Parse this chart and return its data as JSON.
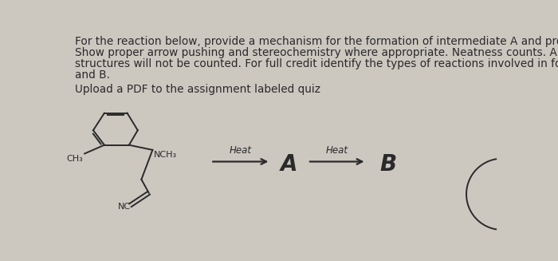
{
  "background_color": "#ccc8c0",
  "title_lines": [
    "For the reaction below, provide a mechanism for the formation of intermediate A and product B.",
    "Show proper arrow pushing and stereochemistry where appropriate. Neatness counts. Any illegible",
    "structures will not be counted. For full credit identify the types of reactions involved in forming A",
    "and B."
  ],
  "upload_line": "Upload a PDF to the assignment labeled quiz",
  "heat_label1": "Heat",
  "heat_label2": "Heat",
  "A_label": "A",
  "B_label": "B",
  "CH3_label": "CH₃",
  "NCH3_label": "NCH₃",
  "NC_label": "NC",
  "text_color": "#2a2a2a",
  "arrow_color": "#2a2a2a",
  "line_color": "#2a2a2a",
  "title_fontsize": 9.8,
  "upload_fontsize": 9.8,
  "heat_fontsize": 8.5,
  "small_label_fontsize": 8.0,
  "AB_fontsize": 20
}
